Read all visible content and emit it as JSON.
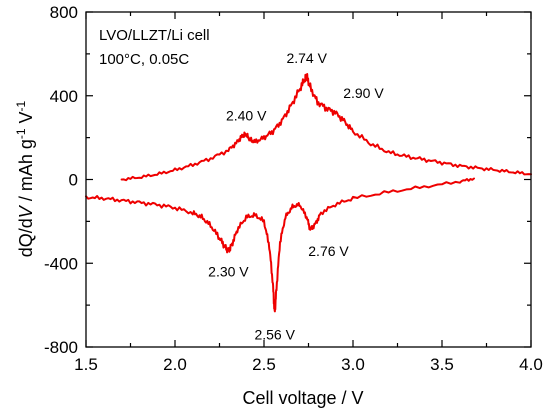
{
  "chart_data": {
    "type": "line",
    "xlabel": "Cell voltage / V",
    "ylabel_parts": [
      "dQ/d",
      "V",
      " / mAh g",
      "-1",
      " V",
      "-1"
    ],
    "xlim": [
      1.5,
      4.0
    ],
    "ylim": [
      -800,
      800
    ],
    "xticks": [
      1.5,
      2.0,
      2.5,
      3.0,
      3.5,
      4.0
    ],
    "xtick_labels": [
      "1.5",
      "2.0",
      "2.5",
      "3.0",
      "3.5",
      "4.0"
    ],
    "yticks": [
      -800,
      -400,
      0,
      400,
      800
    ],
    "ytick_labels": [
      "-800",
      "-400",
      "0",
      "400",
      "800"
    ],
    "grid": false,
    "annotations_text": [
      "LVO/LLZT/Li cell",
      "100°C, 0.05C"
    ],
    "peak_labels": [
      {
        "text": "2.40 V",
        "x": 2.4,
        "y": 215
      },
      {
        "text": "2.74 V",
        "x": 2.74,
        "y": 490
      },
      {
        "text": "2.90 V",
        "x": 2.9,
        "y": 350
      },
      {
        "text": "2.30 V",
        "x": 2.3,
        "y": -340
      },
      {
        "text": "2.56 V",
        "x": 2.56,
        "y": -640
      },
      {
        "text": "2.76 V",
        "x": 2.76,
        "y": -240
      }
    ],
    "colors": {
      "series": "#ee0000",
      "axis": "#000000"
    },
    "series": [
      {
        "x": [
          1.7,
          1.8,
          1.9,
          2.0,
          2.1,
          2.2,
          2.3,
          2.35,
          2.38,
          2.4,
          2.42,
          2.45,
          2.5,
          2.55,
          2.6,
          2.65,
          2.7,
          2.73,
          2.74,
          2.76,
          2.8,
          2.85,
          2.9,
          2.95,
          3.0,
          3.1,
          3.2,
          3.3,
          3.4,
          3.5,
          3.6,
          3.7,
          3.8,
          3.9,
          4.0
        ],
        "y": [
          0,
          10,
          25,
          45,
          70,
          100,
          140,
          180,
          210,
          215,
          190,
          180,
          200,
          230,
          280,
          350,
          430,
          480,
          490,
          440,
          370,
          340,
          320,
          280,
          230,
          170,
          130,
          110,
          95,
          80,
          65,
          55,
          45,
          35,
          25
        ]
      },
      {
        "x": [
          1.5,
          1.6,
          1.7,
          1.8,
          1.9,
          2.0,
          2.1,
          2.15,
          2.2,
          2.25,
          2.28,
          2.3,
          2.32,
          2.35,
          2.4,
          2.45,
          2.5,
          2.53,
          2.55,
          2.56,
          2.57,
          2.59,
          2.62,
          2.66,
          2.7,
          2.74,
          2.76,
          2.79,
          2.82,
          2.9,
          3.0,
          3.2,
          3.4,
          3.6,
          3.68
        ],
        "y": [
          -85,
          -90,
          -100,
          -110,
          -120,
          -135,
          -160,
          -180,
          -220,
          -280,
          -320,
          -340,
          -310,
          -240,
          -180,
          -170,
          -200,
          -320,
          -500,
          -640,
          -520,
          -300,
          -180,
          -130,
          -120,
          -180,
          -240,
          -210,
          -160,
          -120,
          -90,
          -60,
          -35,
          -10,
          5
        ]
      }
    ]
  }
}
